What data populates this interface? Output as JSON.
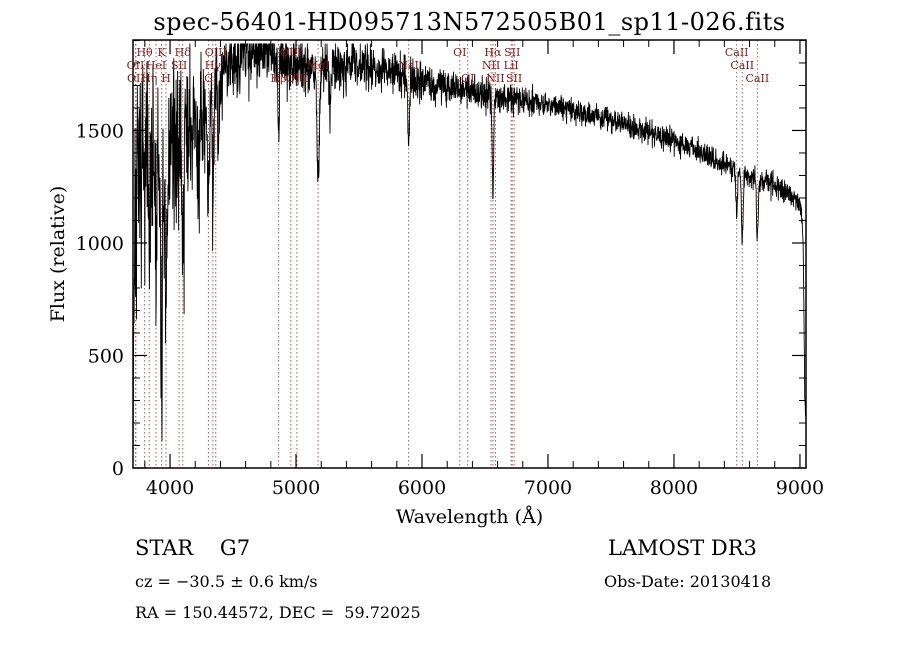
{
  "title": "spec-56401-HD095713N572505B01_sp11-026.fits",
  "annotations": {
    "classification": "STAR    G7",
    "survey": "LAMOST DR3",
    "velocity": "cz = −30.5 ± 0.6 km/s",
    "obs_date": "Obs-Date: 20130418",
    "coords": "RA = 150.44572, DEC =  59.72025"
  },
  "chart_data": {
    "type": "line",
    "title": "spec-56401-HD095713N572505B01_sp11-026.fits",
    "xlabel": "Wavelength (Å)",
    "ylabel": "Flux (relative)",
    "xlim": [
      3706,
      9048
    ],
    "ylim": [
      0,
      1902
    ],
    "x_ticks": [
      4000,
      5000,
      6000,
      7000,
      8000,
      9000
    ],
    "x_tick_labels": [
      "4000",
      "5000",
      "6000",
      "7000",
      "8000",
      "9000"
    ],
    "y_ticks": [
      0,
      500,
      1000,
      1500
    ],
    "y_tick_labels": [
      "0",
      "500",
      "1000",
      "1500"
    ],
    "x_minor_step": 200,
    "y_minor_step": 100,
    "grid": false,
    "legend": false,
    "line_color": "#000000",
    "marker_color": "#bb5555",
    "label_color": "#8b1a1a",
    "seed": 7,
    "continuum": [
      [
        3706,
        80
      ],
      [
        3712,
        700
      ],
      [
        3720,
        1150
      ],
      [
        3740,
        1300
      ],
      [
        3770,
        1370
      ],
      [
        3810,
        1420
      ],
      [
        3850,
        1400
      ],
      [
        3890,
        1340
      ],
      [
        3930,
        1320
      ],
      [
        3970,
        1330
      ],
      [
        4010,
        1420
      ],
      [
        4060,
        1460
      ],
      [
        4120,
        1470
      ],
      [
        4180,
        1500
      ],
      [
        4240,
        1560
      ],
      [
        4300,
        1640
      ],
      [
        4360,
        1700
      ],
      [
        4420,
        1760
      ],
      [
        4480,
        1810
      ],
      [
        4540,
        1840
      ],
      [
        4600,
        1860
      ],
      [
        4660,
        1870
      ],
      [
        4720,
        1870
      ],
      [
        4780,
        1850
      ],
      [
        4840,
        1830
      ],
      [
        4900,
        1820
      ],
      [
        4960,
        1815
      ],
      [
        5020,
        1800
      ],
      [
        5080,
        1790
      ],
      [
        5140,
        1785
      ],
      [
        5200,
        1775
      ],
      [
        5260,
        1775
      ],
      [
        5320,
        1785
      ],
      [
        5380,
        1795
      ],
      [
        5440,
        1800
      ],
      [
        5500,
        1795
      ],
      [
        5560,
        1790
      ],
      [
        5620,
        1780
      ],
      [
        5680,
        1770
      ],
      [
        5740,
        1760
      ],
      [
        5800,
        1755
      ],
      [
        5860,
        1750
      ],
      [
        5920,
        1735
      ],
      [
        5980,
        1725
      ],
      [
        6040,
        1715
      ],
      [
        6100,
        1705
      ],
      [
        6160,
        1700
      ],
      [
        6220,
        1695
      ],
      [
        6280,
        1688
      ],
      [
        6340,
        1682
      ],
      [
        6400,
        1675
      ],
      [
        6460,
        1668
      ],
      [
        6520,
        1662
      ],
      [
        6580,
        1655
      ],
      [
        6640,
        1650
      ],
      [
        6700,
        1645
      ],
      [
        6760,
        1640
      ],
      [
        6820,
        1632
      ],
      [
        6880,
        1625
      ],
      [
        6940,
        1618
      ],
      [
        7000,
        1612
      ],
      [
        7060,
        1605
      ],
      [
        7120,
        1598
      ],
      [
        7180,
        1592
      ],
      [
        7240,
        1585
      ],
      [
        7300,
        1578
      ],
      [
        7360,
        1570
      ],
      [
        7420,
        1562
      ],
      [
        7480,
        1552
      ],
      [
        7540,
        1542
      ],
      [
        7600,
        1530
      ],
      [
        7660,
        1518
      ],
      [
        7720,
        1506
      ],
      [
        7780,
        1494
      ],
      [
        7840,
        1482
      ],
      [
        7900,
        1470
      ],
      [
        7960,
        1458
      ],
      [
        8020,
        1446
      ],
      [
        8080,
        1434
      ],
      [
        8140,
        1420
      ],
      [
        8200,
        1405
      ],
      [
        8260,
        1390
      ],
      [
        8320,
        1372
      ],
      [
        8380,
        1355
      ],
      [
        8440,
        1340
      ],
      [
        8500,
        1325
      ],
      [
        8560,
        1310
      ],
      [
        8620,
        1295
      ],
      [
        8680,
        1282
      ],
      [
        8740,
        1268
      ],
      [
        8800,
        1252
      ],
      [
        8860,
        1235
      ],
      [
        8920,
        1215
      ],
      [
        8980,
        1190
      ],
      [
        9010,
        1150
      ],
      [
        9025,
        1000
      ],
      [
        9040,
        280
      ]
    ],
    "noise_profile": [
      [
        3706,
        300
      ],
      [
        3900,
        280
      ],
      [
        4100,
        230
      ],
      [
        4300,
        170
      ],
      [
        4500,
        130
      ],
      [
        4700,
        105
      ],
      [
        5000,
        85
      ],
      [
        5400,
        70
      ],
      [
        5800,
        62
      ],
      [
        6200,
        52
      ],
      [
        6600,
        45
      ],
      [
        7000,
        40
      ],
      [
        7400,
        37
      ],
      [
        7800,
        35
      ],
      [
        8200,
        33
      ],
      [
        8600,
        34
      ],
      [
        9000,
        38
      ],
      [
        9040,
        45
      ]
    ],
    "blue_spikes": {
      "max_wl": 4400,
      "prob": 0.05,
      "depth": 700
    },
    "absorption_features": [
      {
        "wl": 3798,
        "depth": 300,
        "sigma": 5
      },
      {
        "wl": 3835,
        "depth": 350,
        "sigma": 5
      },
      {
        "wl": 3889,
        "depth": 380,
        "sigma": 5
      },
      {
        "wl": 3933,
        "depth": 820,
        "sigma": 7
      },
      {
        "wl": 3968,
        "depth": 760,
        "sigma": 7
      },
      {
        "wl": 4101,
        "depth": 460,
        "sigma": 6
      },
      {
        "wl": 4226,
        "depth": 250,
        "sigma": 5
      },
      {
        "wl": 4305,
        "depth": 380,
        "sigma": 9
      },
      {
        "wl": 4340,
        "depth": 430,
        "sigma": 6
      },
      {
        "wl": 4383,
        "depth": 250,
        "sigma": 5
      },
      {
        "wl": 4861,
        "depth": 340,
        "sigma": 6
      },
      {
        "wl": 5175,
        "depth": 520,
        "sigma": 9
      },
      {
        "wl": 5270,
        "depth": 180,
        "sigma": 6
      },
      {
        "wl": 5894,
        "depth": 300,
        "sigma": 7
      },
      {
        "wl": 6563,
        "depth": 440,
        "sigma": 6
      },
      {
        "wl": 8498,
        "depth": 210,
        "sigma": 6
      },
      {
        "wl": 8542,
        "depth": 290,
        "sigma": 7
      },
      {
        "wl": 8662,
        "depth": 250,
        "sigma": 7
      }
    ],
    "spectral_lines": [
      {
        "label": "Hθ",
        "wl": 3798,
        "row": 1
      },
      {
        "label": "K",
        "wl": 3933,
        "row": 1
      },
      {
        "label": "Hδ",
        "wl": 4101,
        "row": 1
      },
      {
        "label": "OII",
        "wl": 3726,
        "row": 2
      },
      {
        "label": "HeI",
        "wl": 3889,
        "row": 2
      },
      {
        "label": "SII",
        "wl": 4072,
        "row": 2
      },
      {
        "label": "OII",
        "wl": 3729,
        "row": 3
      },
      {
        "label": "Hη",
        "wl": 3835,
        "row": 3
      },
      {
        "label": "H",
        "wl": 3968,
        "row": 3
      },
      {
        "label": "OIII",
        "wl": 4363,
        "row": 1
      },
      {
        "label": "Hγ",
        "wl": 4340,
        "row": 2
      },
      {
        "label": "G",
        "wl": 4305,
        "row": 3
      },
      {
        "label": "OIII",
        "wl": 4959,
        "row": 1
      },
      {
        "label": "MgI",
        "wl": 5175,
        "row": 2
      },
      {
        "label": "Hβ",
        "wl": 4861,
        "row": 3
      },
      {
        "label": "OIII",
        "wl": 5007,
        "row": 3
      },
      {
        "label": "NaI",
        "wl": 5894,
        "row": 2
      },
      {
        "label": "OI",
        "wl": 6300,
        "row": 1
      },
      {
        "label": "Hα",
        "wl": 6563,
        "row": 1
      },
      {
        "label": "SII",
        "wl": 6716,
        "row": 1
      },
      {
        "label": "NII",
        "wl": 6548,
        "row": 2
      },
      {
        "label": "LiI",
        "wl": 6708,
        "row": 2
      },
      {
        "label": "OI",
        "wl": 6363,
        "row": 3
      },
      {
        "label": "NII",
        "wl": 6583,
        "row": 3
      },
      {
        "label": "SII",
        "wl": 6731,
        "row": 3
      },
      {
        "label": "CaII",
        "wl": 8498,
        "row": 1
      },
      {
        "label": "CaII",
        "wl": 8542,
        "row": 2
      },
      {
        "label": "CaII",
        "wl": 8662,
        "row": 3
      }
    ]
  }
}
